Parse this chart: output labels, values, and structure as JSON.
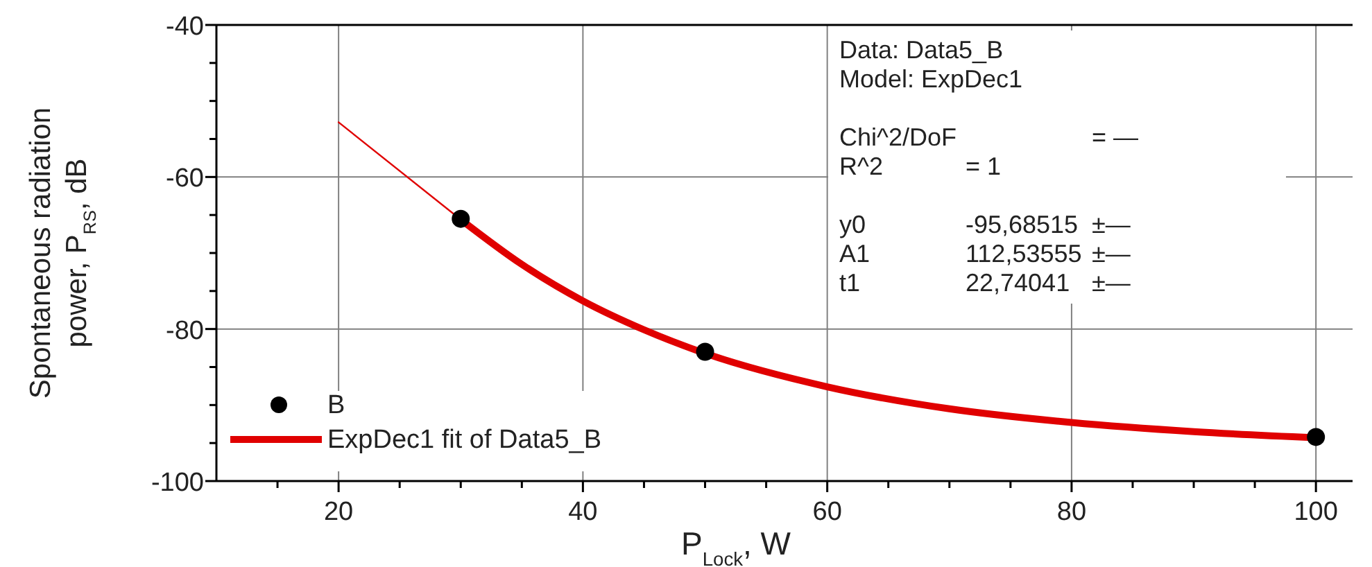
{
  "chart_data": {
    "type": "line",
    "xlabel": "P$_{Lock}$, W",
    "ylabel": "Spontaneous radiation\npower, P$_{RS}$, dB",
    "xlim": [
      10,
      103
    ],
    "ylim": [
      -100,
      -40
    ],
    "xticks": [
      {
        "value": 15,
        "label": null
      },
      20,
      {
        "value": 25,
        "label": null
      },
      {
        "value": 30,
        "label": null
      },
      {
        "value": 35,
        "label": null
      },
      40,
      {
        "value": 45,
        "label": null
      },
      {
        "value": 50,
        "label": null
      },
      {
        "value": 55,
        "label": null
      },
      60,
      {
        "value": 65,
        "label": null
      },
      {
        "value": 70,
        "label": null
      },
      {
        "value": 75,
        "label": null
      },
      80,
      {
        "value": 85,
        "label": null
      },
      {
        "value": 90,
        "label": null
      },
      {
        "value": 95,
        "label": null
      },
      100
    ],
    "yticks": [
      -100,
      {
        "value": -95,
        "label": null
      },
      {
        "value": -90,
        "label": null
      },
      {
        "value": -85,
        "label": null
      },
      -80,
      {
        "value": -75,
        "label": null
      },
      {
        "value": -70,
        "label": null
      },
      {
        "value": -65,
        "label": null
      },
      -60,
      {
        "value": -55,
        "label": null
      },
      {
        "value": -50,
        "label": null
      },
      {
        "value": -45,
        "label": null
      },
      -40
    ],
    "grid": true,
    "legend": "bottom left",
    "series": [
      {
        "color": "#e00000",
        "line_style": "solid",
        "x": [
          20,
          30
        ],
        "values": [
          -52.8,
          -65.6
        ]
      },
      {
        "name": "ExpDec1 fit of Data5_B",
        "color": "#e00000",
        "line_style": "solid",
        "x": [
          30,
          35,
          40,
          45,
          50,
          60,
          70,
          80,
          90,
          100
        ],
        "values": [
          -65.6,
          -71.5,
          -76.3,
          -80.1,
          -83.2,
          -87.6,
          -90.5,
          -92.3,
          -93.5,
          -94.3
        ]
      },
      {
        "type": "scatter",
        "name": "B",
        "color": "#000000",
        "marker": "circle",
        "x": [
          30,
          50,
          100
        ],
        "values": [
          -65.5,
          -83.0,
          -94.2
        ]
      }
    ],
    "annotations": [
      "Data: Data5_B",
      "Model: ExpDec1",
      "Chi^2/DoF\t\t= —",
      "R^2\t= 1",
      "y0\t-95,68515\t±—",
      "A1\t112,53555\t±—",
      "t1\t22,74041\t±—"
    ]
  }
}
